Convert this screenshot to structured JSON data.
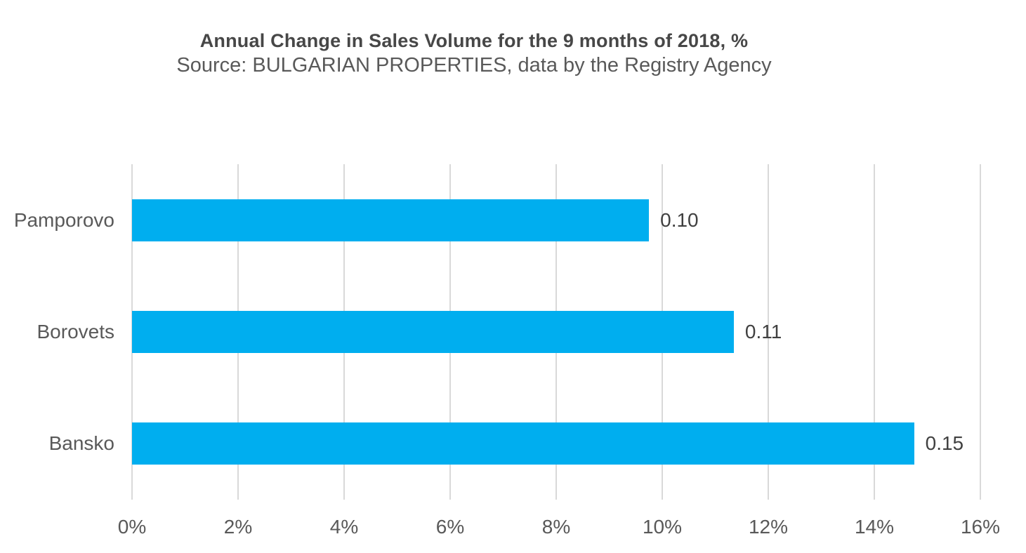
{
  "chart_data": {
    "type": "bar",
    "orientation": "horizontal",
    "title": "Annual Change in Sales Volume for the 9 months of 2018, %",
    "subtitle": "Source: BULGARIAN PROPERTIES, data by the Registry Agency",
    "categories": [
      "Pamporovo",
      "Borovets",
      "Bansko"
    ],
    "values_percent": [
      9.75,
      11.35,
      14.75
    ],
    "data_labels": [
      "0.10",
      "0.11",
      "0.15"
    ],
    "xlabel": "",
    "ylabel": "",
    "xlim": [
      0,
      16
    ],
    "x_ticks": [
      0,
      2,
      4,
      6,
      8,
      10,
      12,
      14,
      16
    ],
    "x_tick_labels": [
      "0%",
      "2%",
      "4%",
      "6%",
      "8%",
      "10%",
      "12%",
      "14%",
      "16%"
    ],
    "grid": "vertical gridlines on",
    "legend": "none"
  },
  "colors": {
    "bar": "#00AEEF",
    "title_text": "#474747",
    "subtitle_text": "#595959",
    "axis_text": "#595959",
    "data_label_text": "#404040",
    "gridline": "#D9D9D9",
    "background": "#FFFFFF"
  }
}
